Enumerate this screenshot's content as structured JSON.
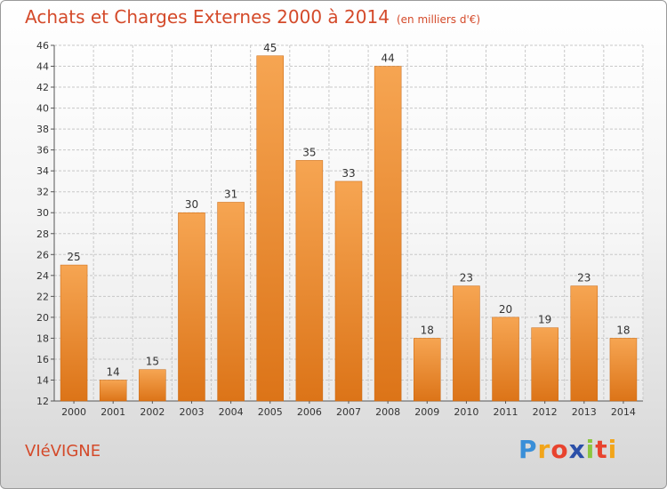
{
  "header": {
    "title": "Achats et Charges Externes 2000 à 2014",
    "unit": "(en milliers d'€)"
  },
  "footer": {
    "place": "VIéVIGNE",
    "logo": {
      "letters": [
        "P",
        "r",
        "o",
        "x",
        "i",
        "t",
        "i"
      ],
      "colors": [
        "#3a8fd8",
        "#f2a51a",
        "#e8432e",
        "#2b4fa8",
        "#8cc63f",
        "#e8432e",
        "#f2a51a"
      ]
    }
  },
  "colors": {
    "bar_light": "#f6a552",
    "bar_dark": "#dc7418",
    "grid": "#c8c8c8",
    "title": "#d44a2a"
  },
  "chart_data": {
    "type": "bar",
    "title": "Achats et Charges Externes 2000 à 2014",
    "subtitle": "(en milliers d'€)",
    "xlabel": "",
    "ylabel": "",
    "categories": [
      "2000",
      "2001",
      "2002",
      "2003",
      "2004",
      "2005",
      "2006",
      "2007",
      "2008",
      "2009",
      "2010",
      "2011",
      "2012",
      "2013",
      "2014"
    ],
    "values": [
      25,
      14,
      15,
      30,
      31,
      45,
      35,
      33,
      44,
      18,
      23,
      20,
      19,
      23,
      18
    ],
    "ylim": [
      12,
      46
    ],
    "yticks": [
      12,
      14,
      16,
      18,
      20,
      22,
      24,
      26,
      28,
      30,
      32,
      34,
      36,
      38,
      40,
      42,
      44,
      46
    ],
    "grid": true,
    "legend": "none"
  }
}
